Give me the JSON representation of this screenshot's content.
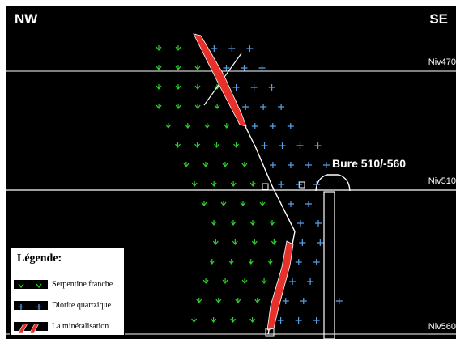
{
  "labels": {
    "left_direction": "NW",
    "right_direction": "SE",
    "levels": [
      "Niv470",
      "Niv510",
      "Niv560"
    ],
    "shaft": "Bure 510/-560"
  },
  "legend": {
    "title": "Légende:",
    "items": [
      {
        "label": "Serpentine franche",
        "symbol": "green-chevron-icon",
        "color": "#2ecc2e"
      },
      {
        "label": "Diorite quartzique",
        "symbol": "blue-cross-icon",
        "color": "#5aa0e6"
      },
      {
        "label": "La minéralisation",
        "symbol": "red-vein-icon",
        "color": "#e8302a"
      }
    ]
  },
  "colors": {
    "background": "#000000",
    "serpentine": "#2ecc2e",
    "diorite": "#5aa0e6",
    "mineralisation": "#e8302a",
    "lines": "#ffffff"
  }
}
